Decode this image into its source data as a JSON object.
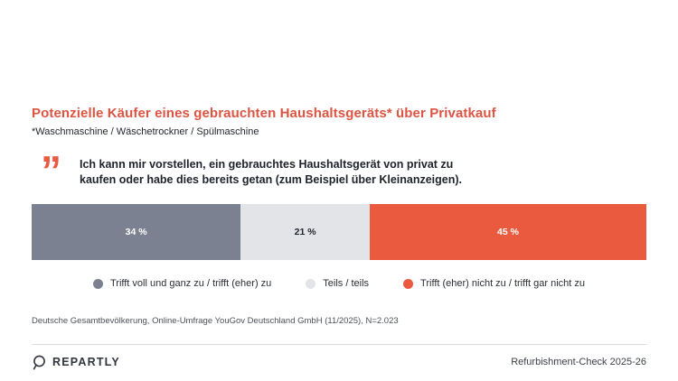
{
  "header": {
    "title": "Potenzielle Käufer eines gebrauchten Haushaltsgeräts* über Privatkauf",
    "subtitle": "*Waschmaschine / Wäschetrockner / Spülmaschine"
  },
  "quote": {
    "mark": "”",
    "text": "Ich kann mir vorstellen, ein gebrauchtes Haushaltsgerät von privat zu kaufen oder habe dies bereits getan (zum Beispiel über Kleinanzeigen)."
  },
  "chart_data": {
    "type": "bar",
    "variant": "horizontal-stacked-100pct",
    "title": "Potenzielle Käufer eines gebrauchten Haushaltsgeräts* über Privatkauf",
    "categories": [
      "Trifft voll und ganz zu / trifft (eher) zu",
      "Teils / teils",
      "Trifft (eher) nicht zu / trifft gar nicht zu"
    ],
    "values": [
      34,
      21,
      45
    ],
    "unit": "%",
    "value_labels": [
      "34 %",
      "21 %",
      "45 %"
    ],
    "segment_colors": [
      "#7B8191",
      "#E3E4E7",
      "#EA5A3F"
    ],
    "label_colors": [
      "#FFFFFF",
      "#22262E",
      "#FFFFFF"
    ],
    "xlim": [
      0,
      100
    ],
    "grid": false,
    "legend_position": "bottom-center"
  },
  "source": "Deutsche Gesamtbevölkerung, Online-Umfrage YouGov Deutschland GmbH (11/2025), N=2.023",
  "footer": {
    "brand": "REPARTLY",
    "report": "Refurbishment-Check 2025-26"
  },
  "colors": {
    "accent": "#DC5442",
    "bar_agree": "#7B8191",
    "bar_neutral": "#E3E4E7",
    "bar_disagree": "#EA5A3F",
    "text_dark": "#1D222B",
    "text_muted": "#4D5259"
  }
}
